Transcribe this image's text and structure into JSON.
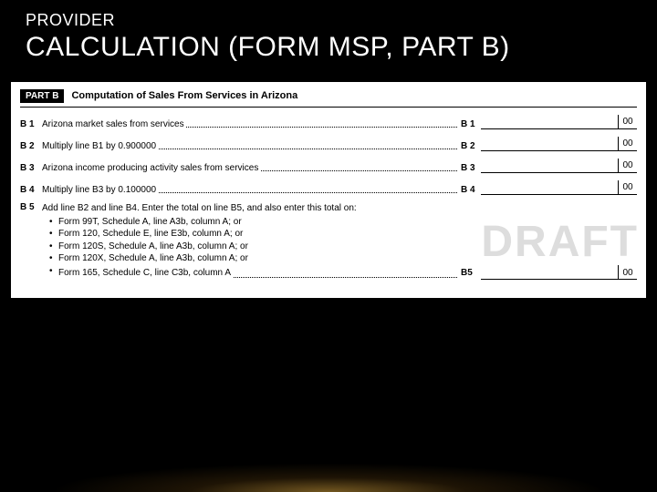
{
  "header": {
    "small": "PROVIDER",
    "large": "CALCULATION (FORM MSP, PART B)"
  },
  "form": {
    "partBadge": "PART B",
    "partTitle": "Computation of Sales From Services in Arizona",
    "rows": [
      {
        "code": "B 1",
        "text": "Arizona market sales from services",
        "rightCode": "B 1",
        "cents": "00"
      },
      {
        "code": "B 2",
        "text": "Multiply line B1 by 0.900000",
        "rightCode": "B 2",
        "cents": "00"
      },
      {
        "code": "B 3",
        "text": "Arizona income producing activity sales from services",
        "rightCode": "B 3",
        "cents": "00"
      },
      {
        "code": "B 4",
        "text": "Multiply line B3 by 0.100000",
        "rightCode": "B 4",
        "cents": "00"
      }
    ],
    "b5": {
      "code": "B 5",
      "lead": "Add line B2 and line B4. Enter the total on line B5, and also enter this total on:",
      "bullets": [
        "Form 99T, Schedule A, line A3b, column A; or",
        "Form 120, Schedule E, line E3b, column A; or",
        "Form 120S, Schedule A, line A3b, column A; or",
        "Form 120X, Schedule A, line A3b, column A; or"
      ],
      "lastBullet": "Form 165, Schedule C, line C3b, column A",
      "rightCode": "B5",
      "cents": "00"
    },
    "watermark": "DRAFT"
  }
}
